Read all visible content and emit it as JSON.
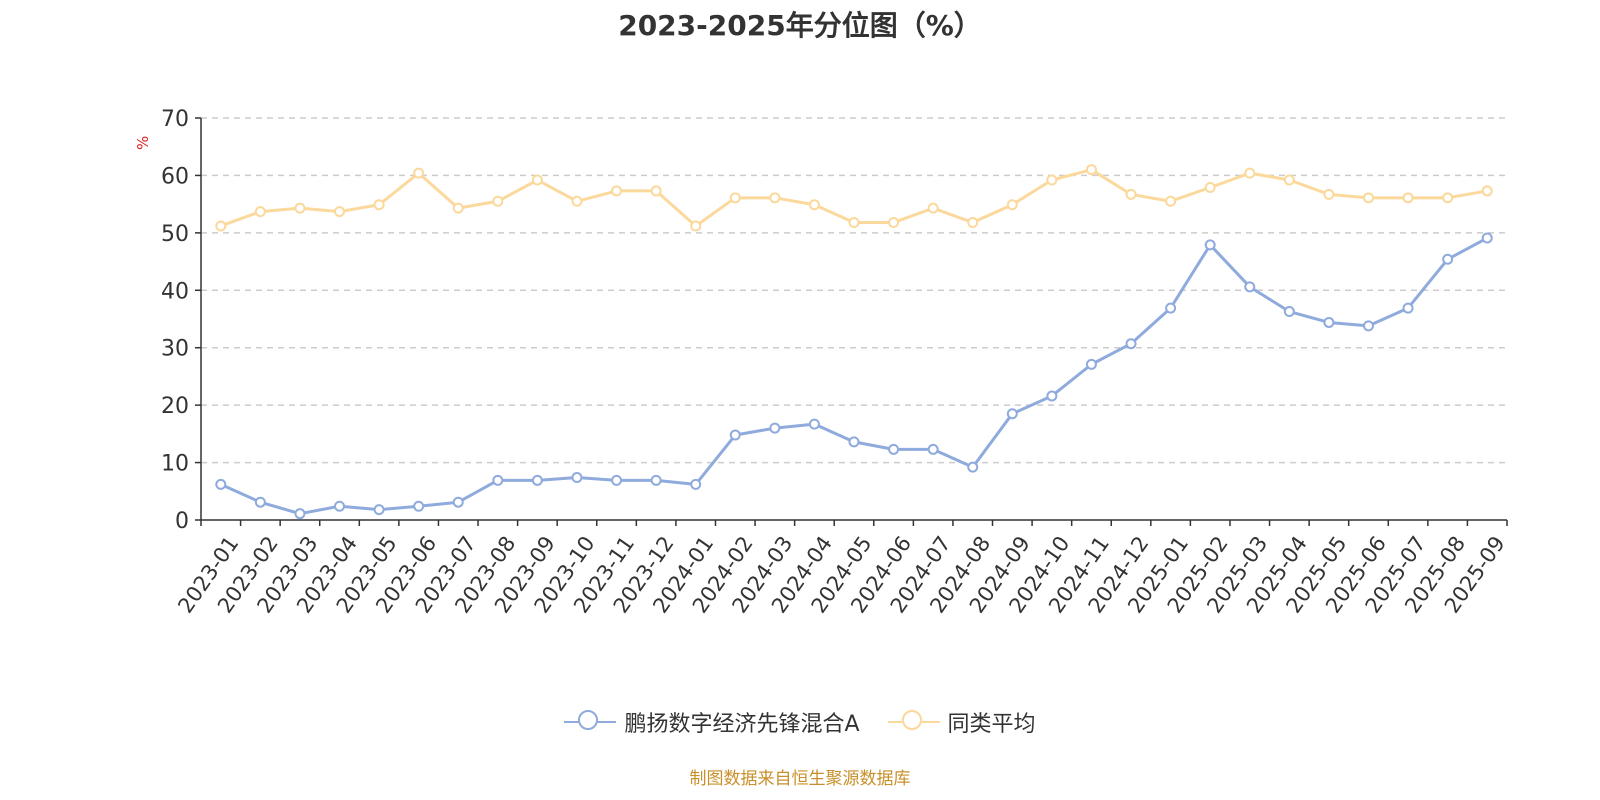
{
  "chart_data": {
    "type": "line",
    "title": "2023-2025年分位图（%）",
    "ylabel": "%",
    "ylim": [
      0,
      70
    ],
    "yticks": [
      0,
      10,
      20,
      30,
      40,
      50,
      60,
      70
    ],
    "grid": true,
    "legend_position": "bottom-center",
    "categories": [
      "2023-01",
      "2023-02",
      "2023-03",
      "2023-04",
      "2023-05",
      "2023-06",
      "2023-07",
      "2023-08",
      "2023-09",
      "2023-10",
      "2023-11",
      "2023-12",
      "2024-01",
      "2024-02",
      "2024-03",
      "2024-04",
      "2024-05",
      "2024-06",
      "2024-07",
      "2024-08",
      "2024-09",
      "2024-10",
      "2024-11",
      "2024-12",
      "2025-01",
      "2025-02",
      "2025-03",
      "2025-04",
      "2025-05",
      "2025-06",
      "2025-07",
      "2025-08",
      "2025-09"
    ],
    "series": [
      {
        "name": "鹏扬数字经济先锋混合A",
        "color": "#8faadc",
        "values": [
          6.2,
          3.1,
          1.1,
          2.4,
          1.8,
          2.4,
          3.1,
          6.9,
          6.9,
          7.4,
          6.9,
          6.9,
          6.2,
          14.8,
          16.0,
          16.7,
          13.6,
          12.3,
          12.3,
          9.2,
          18.5,
          21.6,
          27.1,
          30.7,
          36.9,
          47.9,
          40.6,
          36.3,
          34.4,
          33.8,
          36.9,
          45.4,
          49.1
        ]
      },
      {
        "name": "同类平均",
        "color": "#fbd89b",
        "values": [
          51.2,
          53.7,
          54.3,
          53.7,
          54.9,
          60.4,
          54.3,
          55.5,
          59.2,
          55.5,
          57.3,
          57.3,
          51.2,
          56.1,
          56.1,
          54.9,
          51.8,
          51.8,
          54.3,
          51.8,
          54.9,
          59.2,
          61.0,
          56.7,
          55.5,
          57.9,
          60.4,
          59.2,
          56.7,
          56.1,
          56.1,
          56.1,
          57.3
        ]
      }
    ]
  },
  "source_text": "制图数据来自恒生聚源数据库"
}
